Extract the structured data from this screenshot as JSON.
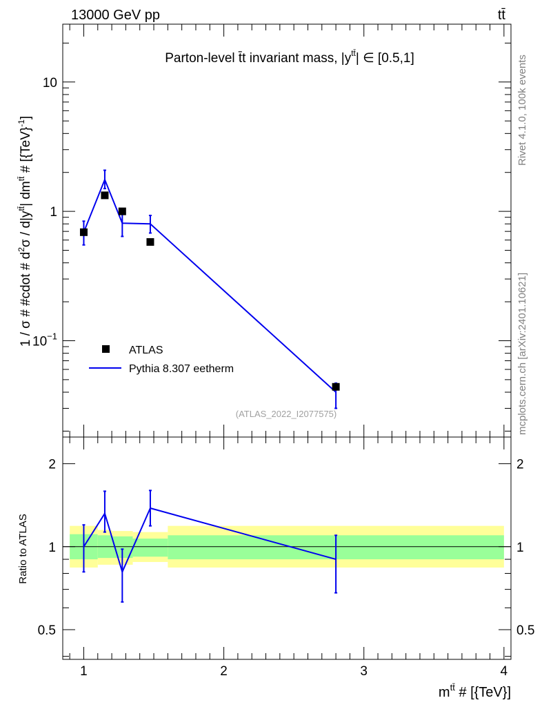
{
  "header": {
    "left": "13000 GeV pp",
    "right": "tt̄"
  },
  "side_labels": {
    "top": "Rivet 4.1.0,  100k events",
    "bottom": "mcplots.cern.ch [arXiv:2401.10621]"
  },
  "chart_data": [
    {
      "type": "line",
      "title": "Parton-level t̄t invariant mass, |y^{tt̄}| ∈ [0.5,1]",
      "title_main": "Parton-level t̄t invariant mass, |y",
      "title_sup": "tt̄",
      "title_tail": "| ∈ [0.5,1]",
      "ylabel": "1 / σ # #cdot # d²σ / d|y^{tt̄}| dm^{tt̄} # [{TeV}⁻¹]",
      "ylabel_parts": [
        "1 / σ # #cdot # d",
        "2",
        "σ / d|y",
        "tt̄",
        "| dm",
        "tt̄",
        " # [{TeV}",
        "-1",
        "]"
      ],
      "yscale": "log",
      "ylim": [
        0.018,
        28
      ],
      "yticks": [
        {
          "value": 10,
          "label": "10"
        },
        {
          "value": 1,
          "label": "1"
        },
        {
          "value": 0.1,
          "label": "10",
          "exp": "−1"
        }
      ],
      "xlim": [
        0.85,
        4.05
      ],
      "watermark": "(ATLAS_2022_I2077575)",
      "legend": [
        {
          "label": "ATLAS",
          "kind": "marker"
        },
        {
          "label": "Pythia 8.307 eetherm",
          "kind": "line"
        }
      ],
      "series": [
        {
          "name": "ATLAS",
          "color": "#000000",
          "x": [
            1.0,
            1.15,
            1.275,
            1.475,
            2.8
          ],
          "y": [
            0.69,
            1.33,
            1.0,
            0.58,
            0.044
          ],
          "yerr": [
            0.0,
            0.0,
            0.0,
            0.0,
            0.0
          ]
        },
        {
          "name": "Pythia 8.307 eetherm",
          "color": "#0000ee",
          "x": [
            1.0,
            1.15,
            1.275,
            1.475,
            2.8
          ],
          "y": [
            0.69,
            1.76,
            0.81,
            0.8,
            0.04
          ],
          "ylow": [
            0.55,
            1.5,
            0.64,
            0.68,
            0.03
          ],
          "yhigh": [
            0.84,
            2.08,
            0.98,
            0.93,
            0.047
          ]
        }
      ]
    },
    {
      "type": "line",
      "xlabel_main": "m",
      "xlabel_sup": "tt̄",
      "xlabel_tail": " # [{TeV}]",
      "ylabel": "Ratio to ATLAS",
      "yscale": "log",
      "ylim": [
        0.39,
        2.5
      ],
      "yticks": [
        {
          "value": 2,
          "label": "2"
        },
        {
          "value": 1,
          "label": "1"
        },
        {
          "value": 0.5,
          "label": "0.5"
        }
      ],
      "xlim": [
        0.85,
        4.05
      ],
      "xticks": [
        {
          "value": 1,
          "label": "1"
        },
        {
          "value": 2,
          "label": "2"
        },
        {
          "value": 3,
          "label": "3"
        },
        {
          "value": 4,
          "label": "4"
        }
      ],
      "bands": [
        {
          "x0": 0.9,
          "x1": 1.1,
          "stat": [
            0.9,
            1.11
          ],
          "tot": [
            0.84,
            1.19
          ]
        },
        {
          "x0": 1.1,
          "x1": 1.2,
          "stat": [
            0.91,
            1.1
          ],
          "tot": [
            0.86,
            1.15
          ]
        },
        {
          "x0": 1.2,
          "x1": 1.35,
          "stat": [
            0.91,
            1.09
          ],
          "tot": [
            0.86,
            1.14
          ]
        },
        {
          "x0": 1.35,
          "x1": 1.6,
          "stat": [
            0.92,
            1.07
          ],
          "tot": [
            0.88,
            1.13
          ]
        },
        {
          "x0": 1.6,
          "x1": 4.0,
          "stat": [
            0.9,
            1.1
          ],
          "tot": [
            0.84,
            1.19
          ]
        }
      ],
      "series": [
        {
          "name": "Pythia 8.307 eetherm",
          "color": "#0000ee",
          "x": [
            1.0,
            1.15,
            1.275,
            1.475,
            2.8
          ],
          "y": [
            1.0,
            1.32,
            0.81,
            1.38,
            0.9
          ],
          "ylow": [
            0.81,
            1.13,
            0.63,
            1.19,
            0.68
          ],
          "yhigh": [
            1.2,
            1.59,
            0.98,
            1.6,
            1.1
          ]
        }
      ]
    }
  ]
}
